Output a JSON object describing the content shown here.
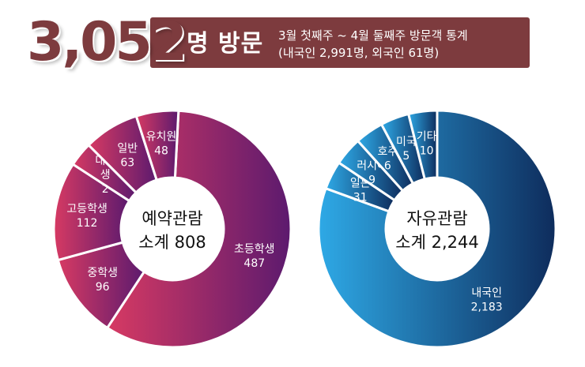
{
  "header": {
    "total": "3,052",
    "title": "명 방문",
    "subtitle_line1": "3월 첫째주 ~ 4월 둘째주 방문객 통계",
    "subtitle_line2": "(내국인 2,991명, 외국인 61명)"
  },
  "colors": {
    "banner": "#7d3b3e",
    "left_light": "#d73a63",
    "left_dark": "#5c1a6e",
    "right_light": "#2ea9e6",
    "right_dark": "#0e2c5c"
  },
  "chart_data": [
    {
      "type": "pie",
      "center_label": [
        "예약관람",
        "소계 808"
      ],
      "categories": [
        "초등학생",
        "중학생",
        "고등학생",
        "대학생",
        "일반",
        "유치원"
      ],
      "values": [
        487,
        96,
        112,
        2,
        63,
        48
      ]
    },
    {
      "type": "pie",
      "center_label": [
        "자유관람",
        "소계 2,244"
      ],
      "categories": [
        "내국인",
        "일본",
        "러시아",
        "호주",
        "미국",
        "기타"
      ],
      "values": [
        2183,
        31,
        9,
        6,
        5,
        10
      ]
    }
  ],
  "labels": {
    "left": [
      {
        "name": "초등학생",
        "value": "487"
      },
      {
        "name": "중학생",
        "value": "96"
      },
      {
        "name": "고등학생",
        "value": "112"
      },
      {
        "name": "대학\n생",
        "value": "2"
      },
      {
        "name": "일반",
        "value": "63"
      },
      {
        "name": "유치원",
        "value": "48"
      }
    ],
    "right": [
      {
        "name": "내국인",
        "value": "2,183"
      },
      {
        "name": "일본",
        "value": "31"
      },
      {
        "name": "러시아",
        "value": "9"
      },
      {
        "name": "호주",
        "value": "6"
      },
      {
        "name": "미국",
        "value": "5"
      },
      {
        "name": "기타",
        "value": "10"
      }
    ]
  }
}
